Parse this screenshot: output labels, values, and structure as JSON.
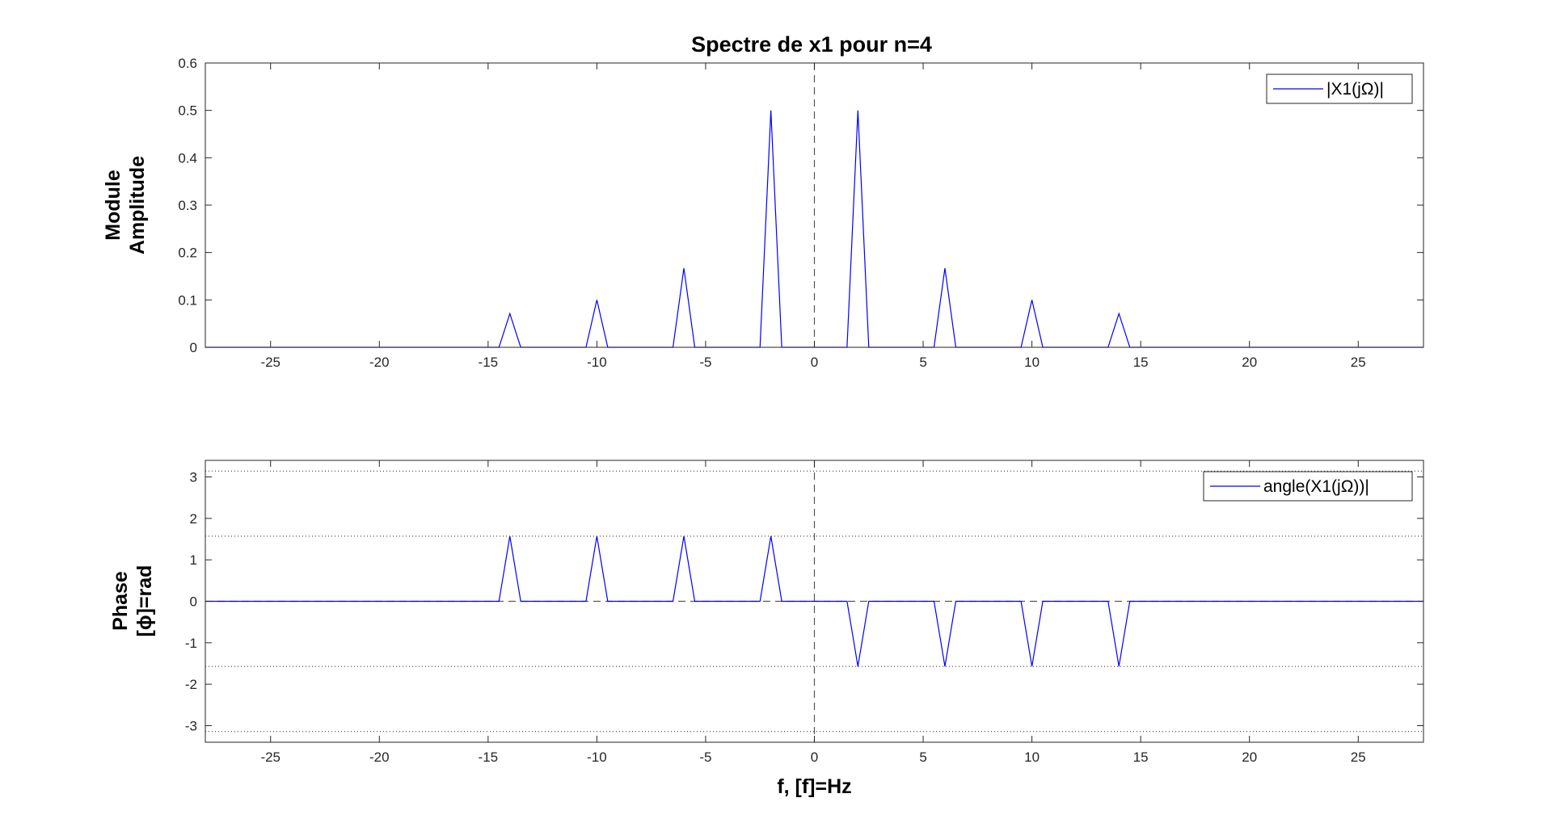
{
  "chart_data": [
    {
      "type": "line",
      "title": "Spectre de x1 pour n=4",
      "ylabel": [
        "Module",
        "Amplitude"
      ],
      "xlabel": "",
      "xlim": [
        -28,
        28
      ],
      "ylim": [
        0,
        0.6
      ],
      "xticks": [
        -25,
        -20,
        -15,
        -10,
        -5,
        0,
        5,
        10,
        15,
        20,
        25
      ],
      "yticks": [
        0,
        0.1,
        0.2,
        0.3,
        0.4,
        0.5,
        0.6
      ],
      "ytick_labels": [
        "0",
        "0.1",
        "0.2",
        "0.3",
        "0.4",
        "0.5",
        "0.6"
      ],
      "grid": false,
      "legend": {
        "position": "top-right",
        "entries": [
          "|X1(jΩ)|"
        ]
      },
      "reference_lines": {
        "vertical_dashed_at": 0
      },
      "line_color": "#0000ff",
      "series": [
        {
          "name": "|X1(jΩ)|",
          "x": [
            -28,
            -14.5,
            -14,
            -13.5,
            -10.5,
            -10,
            -9.5,
            -6.5,
            -6,
            -5.5,
            -2.5,
            -2,
            -1.5,
            1.5,
            2,
            2.5,
            5.5,
            6,
            6.5,
            9.5,
            10,
            10.5,
            13.5,
            14,
            14.5,
            28
          ],
          "y": [
            0,
            0,
            0.071,
            0,
            0,
            0.1,
            0,
            0,
            0.167,
            0,
            0,
            0.5,
            0,
            0,
            0.5,
            0,
            0,
            0.167,
            0,
            0,
            0.1,
            0,
            0,
            0.071,
            0,
            0
          ]
        }
      ]
    },
    {
      "type": "line",
      "title": "",
      "ylabel": [
        "Phase",
        "[ϕ]=rad"
      ],
      "xlabel": "f, [f]=Hz",
      "xlim": [
        -28,
        28
      ],
      "ylim": [
        -3.4,
        3.4
      ],
      "xticks": [
        -25,
        -20,
        -15,
        -10,
        -5,
        0,
        5,
        10,
        15,
        20,
        25
      ],
      "yticks": [
        -3,
        -2,
        -1,
        0,
        1,
        2,
        3
      ],
      "ytick_labels": [
        "-3",
        "-2",
        "-1",
        "0",
        "1",
        "2",
        "3"
      ],
      "grid": false,
      "legend": {
        "position": "top-right",
        "entries": [
          "angle(X1(jΩ))|"
        ]
      },
      "reference_lines": {
        "vertical_dashed_at": 0,
        "horizontal_dashed_at": 0,
        "horizontal_dotted_at": [
          3.1416,
          1.5708,
          -1.5708,
          -3.1416
        ]
      },
      "line_color": "#0000ff",
      "series": [
        {
          "name": "angle(X1(jΩ))|",
          "x": [
            -28,
            -14.5,
            -14,
            -13.5,
            -10.5,
            -10,
            -9.5,
            -6.5,
            -6,
            -5.5,
            -2.5,
            -2,
            -1.5,
            1.5,
            2,
            2.5,
            5.5,
            6,
            6.5,
            9.5,
            10,
            10.5,
            13.5,
            14,
            14.5,
            28
          ],
          "y": [
            0,
            0,
            1.5708,
            0,
            0,
            1.5708,
            0,
            0,
            1.5708,
            0,
            0,
            1.5708,
            0,
            0,
            -1.5708,
            0,
            0,
            -1.5708,
            0,
            0,
            -1.5708,
            0,
            0,
            -1.5708,
            0,
            0
          ]
        }
      ]
    }
  ]
}
